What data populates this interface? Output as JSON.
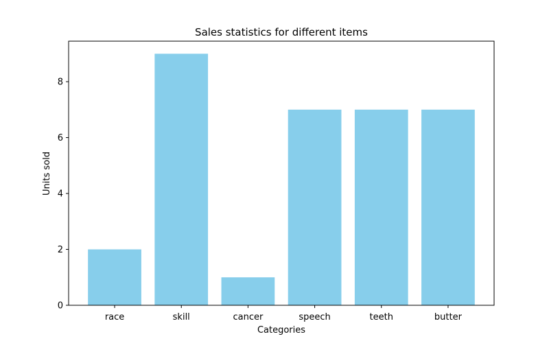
{
  "chart_data": {
    "type": "bar",
    "title": "Sales statistics for different items",
    "xlabel": "Categories",
    "ylabel": "Units sold",
    "categories": [
      "race",
      "skill",
      "cancer",
      "speech",
      "teeth",
      "butter"
    ],
    "values": [
      2,
      9,
      1,
      7,
      7,
      7
    ],
    "ylim": [
      0,
      9.45
    ],
    "yticks": [
      0,
      2,
      4,
      6,
      8
    ],
    "grid": false,
    "legend": "none",
    "bar_color": "#87CEEB"
  }
}
